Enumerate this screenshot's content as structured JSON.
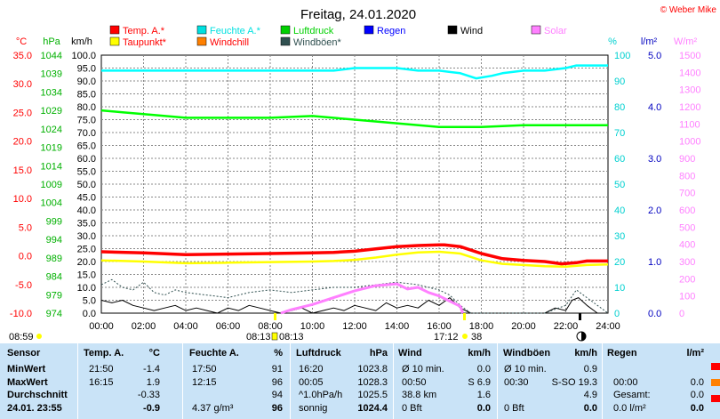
{
  "copyright": "© Weber Mike",
  "chart_data": {
    "type": "line",
    "title": "Freitag, 24.01.2020",
    "x_ticks": [
      "00:00",
      "02:00",
      "04:00",
      "06:00",
      "08:00",
      "10:00",
      "12:00",
      "14:00",
      "16:00",
      "18:00",
      "20:00",
      "22:00",
      "24:00"
    ],
    "xlim": [
      0,
      24
    ],
    "axes": {
      "temp": {
        "unit": "°C",
        "color": "#ff0000",
        "ticks": [
          "35.0",
          "30.0",
          "25.0",
          "20.0",
          "15.0",
          "10.0",
          "5.0",
          "0.0",
          "-5.0",
          "-10.0"
        ],
        "range": [
          -10,
          35
        ]
      },
      "pressure": {
        "unit": "hPa",
        "color": "#00b000",
        "ticks": [
          "1044",
          "1039",
          "1034",
          "1029",
          "1024",
          "1019",
          "1014",
          "1009",
          "1004",
          "999",
          "994",
          "989",
          "984",
          "979",
          "974"
        ],
        "range": [
          974,
          1044
        ]
      },
      "wind": {
        "unit": "km/h",
        "color": "#000000",
        "ticks": [
          "100.0",
          "95.0",
          "90.0",
          "85.0",
          "80.0",
          "75.0",
          "70.0",
          "65.0",
          "60.0",
          "55.0",
          "50.0",
          "45.0",
          "40.0",
          "35.0",
          "30.0",
          "25.0",
          "20.0",
          "15.0",
          "10.0",
          "5.0",
          "0.0"
        ],
        "range": [
          0,
          100
        ]
      },
      "humidity": {
        "unit": "%",
        "color": "#00d0d0",
        "ticks": [
          "100",
          "90",
          "80",
          "70",
          "60",
          "50",
          "40",
          "30",
          "20",
          "10",
          "0"
        ],
        "range": [
          0,
          100
        ]
      },
      "rain": {
        "unit": "l/m²",
        "color": "#0000c0",
        "ticks": [
          "5.0",
          "4.0",
          "3.0",
          "2.0",
          "1.0",
          "0.0"
        ],
        "range": [
          0,
          5
        ]
      },
      "solar": {
        "unit": "W/m²",
        "color": "#ff80ff",
        "ticks": [
          "1500",
          "1400",
          "1300",
          "1200",
          "1100",
          "1000",
          "900",
          "800",
          "700",
          "600",
          "500",
          "400",
          "300",
          "200",
          "100",
          "0"
        ],
        "range": [
          0,
          1500
        ]
      }
    },
    "legend": [
      {
        "name": "Temp. A.*",
        "color": "#ff0000"
      },
      {
        "name": "Feuchte A.*",
        "color": "#00e0e0"
      },
      {
        "name": "Luftdruck",
        "color": "#00d000"
      },
      {
        "name": "Regen",
        "color": "#0000ff"
      },
      {
        "name": "Wind",
        "color": "#000000"
      },
      {
        "name": "Solar",
        "color": "#ff80ff"
      },
      {
        "name": "Taupunkt*",
        "color": "#ffff00"
      },
      {
        "name": "Windchill",
        "color": "#ff8000"
      },
      {
        "name": "Windböen*",
        "color": "#305050"
      }
    ],
    "series": [
      {
        "name": "Temp. A.*",
        "axis": "temp",
        "x": [
          0,
          2,
          4,
          6,
          8,
          10,
          11,
          12,
          13,
          14,
          15,
          16,
          16.25,
          17,
          18,
          19,
          20,
          21,
          21.8,
          22.5,
          23,
          24
        ],
        "y": [
          0.7,
          0.5,
          0.2,
          0.3,
          0.4,
          0.5,
          0.6,
          0.8,
          1.2,
          1.6,
          1.8,
          1.9,
          1.9,
          1.6,
          0.4,
          -0.5,
          -0.8,
          -1.0,
          -1.4,
          -1.2,
          -0.9,
          -0.9
        ]
      },
      {
        "name": "Taupunkt*",
        "axis": "temp",
        "x": [
          0,
          2,
          4,
          6,
          8,
          10,
          11,
          12,
          13,
          14,
          15,
          16,
          17,
          18,
          19,
          20,
          21,
          22,
          23,
          24
        ],
        "y": [
          -0.8,
          -1.0,
          -1.3,
          -1.2,
          -1.1,
          -1.0,
          -0.9,
          -0.7,
          -0.3,
          0.2,
          0.6,
          0.7,
          0.4,
          -0.8,
          -1.4,
          -1.6,
          -1.8,
          -1.9,
          -1.6,
          -1.5
        ]
      },
      {
        "name": "Feuchte A.*",
        "axis": "humidity",
        "x": [
          0,
          2,
          4,
          6,
          8,
          10,
          11,
          12,
          13,
          14,
          15,
          16,
          17,
          17.75,
          18.5,
          19,
          20,
          21,
          22,
          22.5,
          23,
          24
        ],
        "y": [
          94,
          94,
          94,
          94,
          94,
          94,
          94,
          95,
          95,
          95,
          94,
          94,
          93,
          91,
          92,
          93,
          94,
          94,
          95,
          96,
          96,
          96
        ]
      },
      {
        "name": "Luftdruck",
        "axis": "pressure",
        "x": [
          0,
          1,
          2,
          4,
          6,
          8,
          10,
          12,
          14,
          16,
          17,
          18,
          20,
          22,
          24
        ],
        "y": [
          1029,
          1028.5,
          1028,
          1027,
          1027,
          1027,
          1027.5,
          1026.5,
          1025.5,
          1024.5,
          1024.5,
          1024.5,
          1025,
          1025,
          1025
        ]
      },
      {
        "name": "Wind",
        "axis": "wind",
        "x": [
          0,
          0.5,
          1,
          1.5,
          2,
          2.5,
          3,
          3.5,
          4,
          4.5,
          5,
          5.5,
          6,
          6.5,
          7,
          7.5,
          8,
          8.5,
          9,
          9.5,
          10,
          10.5,
          11,
          11.5,
          12,
          12.5,
          13,
          13.5,
          14,
          14.5,
          15,
          15.5,
          16,
          16.5,
          17,
          17.5,
          18,
          19,
          20,
          21,
          21.5,
          22,
          22.3,
          22.6,
          23,
          23.5,
          24
        ],
        "y": [
          5,
          4,
          5,
          3,
          2,
          1,
          2,
          3,
          1,
          2,
          1,
          0,
          2,
          1,
          3,
          2,
          1,
          0,
          1,
          2,
          0,
          1,
          2,
          1,
          3,
          2,
          1,
          4,
          2,
          3,
          2,
          5,
          3,
          6,
          2,
          0,
          0,
          0,
          0,
          0,
          2,
          1,
          5,
          6,
          3,
          0,
          0
        ]
      },
      {
        "name": "Windböen*",
        "axis": "wind",
        "x": [
          0,
          0.5,
          1,
          1.5,
          2,
          2.5,
          3,
          3.5,
          4,
          5,
          6,
          7,
          8,
          9,
          10,
          11,
          12,
          13,
          14,
          15,
          15.5,
          16,
          16.5,
          17,
          17.5,
          18,
          19,
          20,
          21,
          22,
          22.5,
          23,
          23.5,
          24
        ],
        "y": [
          11,
          13,
          10,
          9,
          12,
          8,
          7,
          9,
          8,
          7,
          6,
          8,
          9,
          8,
          9,
          10,
          10,
          11,
          12,
          11,
          10,
          9,
          7,
          3,
          0,
          0,
          0,
          0,
          0,
          3,
          9,
          6,
          3,
          0
        ]
      },
      {
        "name": "Solar",
        "axis": "solar",
        "x": [
          8.5,
          9,
          10,
          11,
          12,
          13,
          14,
          14.5,
          15,
          15.5,
          16,
          16.5,
          17,
          17.12
        ],
        "y": [
          0,
          20,
          50,
          90,
          130,
          160,
          170,
          140,
          150,
          120,
          100,
          70,
          40,
          0
        ]
      }
    ]
  },
  "bottom_axis": {
    "sunrise_time": "08:59",
    "moon_times": [
      "08:13",
      "08:13"
    ],
    "sunset_time": "17:12",
    "moon_age": "38"
  },
  "summary": {
    "headers": {
      "sensor": "Sensor",
      "temp": "Temp. A.",
      "temp_unit": "°C",
      "humidity": "Feuchte A.",
      "humidity_unit": "%",
      "pressure": "Luftdruck",
      "pressure_unit": "hPa",
      "wind": "Wind",
      "wind_unit": "km/h",
      "gust": "Windböen",
      "gust_unit": "km/h",
      "rain": "Regen",
      "rain_unit": "l/m²"
    },
    "rows": [
      {
        "label": "MinWert",
        "temp_time": "21:50",
        "temp_val": "-1.4",
        "hum_time": "17:50",
        "hum_val": "91",
        "press_time": "16:20",
        "press_val": "1023.8",
        "wind_label": "Ø 10 min.",
        "wind_val": "0.0",
        "gust_label": "Ø 10 min.",
        "gust_val": "0.9",
        "rain_label": "",
        "rain_val": ""
      },
      {
        "label": "MaxWert",
        "temp_time": "16:15",
        "temp_val": "1.9",
        "hum_time": "12:15",
        "hum_val": "96",
        "press_time": "00:05",
        "press_val": "1028.3",
        "wind_label": "00:50",
        "wind_val": "S 6.9",
        "gust_label": "00:30",
        "gust_val": "S-SO 19.3",
        "rain_label": "00:00",
        "rain_val": "0.0"
      },
      {
        "label": "Durchschnitt",
        "temp_time": "",
        "temp_val": "-0.33",
        "hum_time": "",
        "hum_val": "94",
        "press_time": "^1.0hPa/h",
        "press_val": "1025.5",
        "wind_label": "38.8 km",
        "wind_val": "1.6",
        "gust_label": "",
        "gust_val": "4.9",
        "rain_label": "Gesamt:",
        "rain_val": "0.0"
      },
      {
        "label": "24.01. 23:55",
        "temp_time": "",
        "temp_val": "-0.9",
        "hum_time": "4.37 g/m³",
        "hum_val": "96",
        "press_time": "sonnig",
        "press_val": "1024.4",
        "wind_label": "0 Bft",
        "wind_val": "0.0",
        "gust_label": "0 Bft",
        "gust_val": "0.0",
        "rain_label": "0.0 l/m²",
        "rain_val": "0.0"
      }
    ]
  }
}
